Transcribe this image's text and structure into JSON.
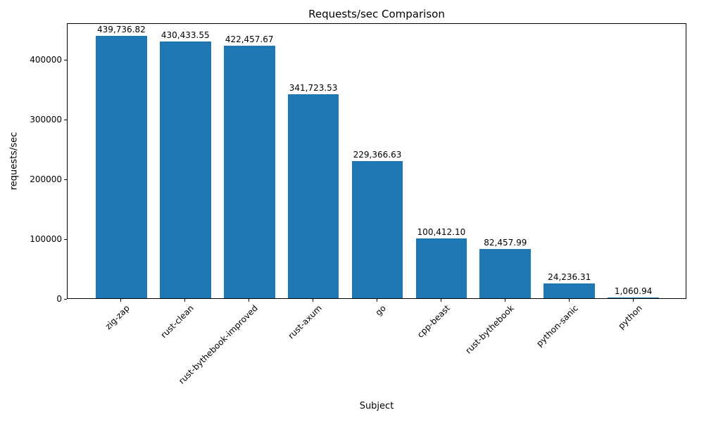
{
  "chart_data": {
    "type": "bar",
    "title": "Requests/sec Comparison",
    "xlabel": "Subject",
    "ylabel": "requests/sec",
    "categories": [
      "zig-zap",
      "rust-clean",
      "rust-bythebook-improved",
      "rust-axum",
      "go",
      "cpp-beast",
      "rust-bythebook",
      "python-sanic",
      "python"
    ],
    "values": [
      439736.82,
      430433.55,
      422457.67,
      341723.53,
      229366.63,
      100412.1,
      82457.99,
      24236.31,
      1060.94
    ],
    "value_labels": [
      "439,736.82",
      "430,433.55",
      "422,457.67",
      "341,723.53",
      "229,366.63",
      "100,412.10",
      "82,457.99",
      "24,236.31",
      "1,060.94"
    ],
    "yticks": [
      0,
      100000,
      200000,
      300000,
      400000
    ],
    "ytick_labels": [
      "0",
      "100000",
      "200000",
      "300000",
      "400000"
    ],
    "ylim": [
      0,
      461723
    ],
    "xlim": [
      -0.84,
      8.84
    ],
    "bar_width": 0.8,
    "bar_color": "#1f77b4",
    "grid": false,
    "legend": null
  }
}
